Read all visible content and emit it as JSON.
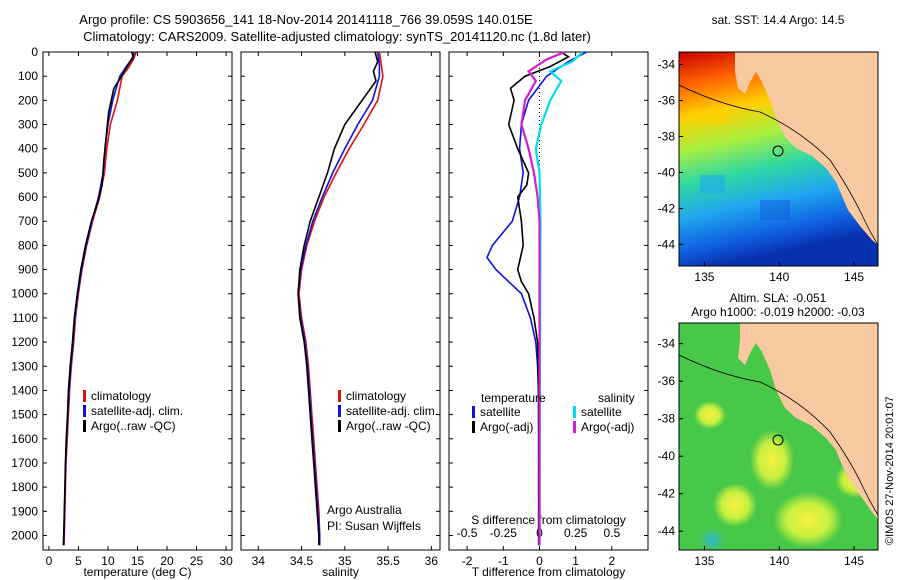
{
  "header": {
    "title_line1": "Argo profile: CS 5903656_141 18-Nov-2014 20141118_766 39.059S 140.015E",
    "title_line2": "Climatology: CARS2009. Satellite-adjusted climatology: synTS_20141120.nc (1.8d later)"
  },
  "colors": {
    "climatology": "#e01010",
    "satellite": "#1010e0",
    "argo": "#000000",
    "sal_satellite": "#00e0e8",
    "sal_argo": "#d020d0",
    "land": "#f8c8a0"
  },
  "chart_data": [
    {
      "name": "temperature-panel",
      "type": "line",
      "xlabel": "temperature (deg C)",
      "xlim": [
        -1,
        31
      ],
      "xticks": [
        0,
        5,
        10,
        15,
        20,
        25,
        30
      ],
      "ylim": [
        2060,
        0
      ],
      "yticks": [
        0,
        100,
        200,
        300,
        400,
        500,
        600,
        700,
        800,
        900,
        1000,
        1100,
        1200,
        1300,
        1400,
        1500,
        1600,
        1700,
        1800,
        1900,
        2000
      ],
      "legend": [
        "climatology",
        "satellite-adj. clim.",
        "Argo(..raw -QC)"
      ],
      "series": [
        {
          "key": "climatology",
          "points": [
            [
              14.8,
              0
            ],
            [
              14.3,
              30
            ],
            [
              13.6,
              60
            ],
            [
              12.4,
              100
            ],
            [
              11.6,
              200
            ],
            [
              10.4,
              300
            ],
            [
              9.8,
              400
            ],
            [
              9.4,
              500
            ],
            [
              8.6,
              600
            ],
            [
              7.4,
              700
            ],
            [
              6.4,
              800
            ],
            [
              5.6,
              900
            ],
            [
              5.0,
              1000
            ],
            [
              4.5,
              1100
            ],
            [
              4.2,
              1200
            ],
            [
              3.8,
              1300
            ],
            [
              3.5,
              1400
            ],
            [
              3.3,
              1500
            ],
            [
              3.1,
              1600
            ],
            [
              2.9,
              1700
            ],
            [
              2.8,
              1800
            ],
            [
              2.7,
              1900
            ],
            [
              2.6,
              2000
            ],
            [
              2.55,
              2040
            ]
          ]
        },
        {
          "key": "satellite",
          "points": [
            [
              14.5,
              0
            ],
            [
              14.0,
              30
            ],
            [
              13.1,
              60
            ],
            [
              12.0,
              100
            ],
            [
              10.8,
              200
            ],
            [
              10.0,
              300
            ],
            [
              9.5,
              400
            ],
            [
              9.2,
              500
            ],
            [
              8.4,
              600
            ],
            [
              7.3,
              700
            ],
            [
              6.3,
              800
            ],
            [
              5.5,
              900
            ],
            [
              4.9,
              1000
            ],
            [
              4.4,
              1100
            ],
            [
              4.1,
              1200
            ],
            [
              3.7,
              1300
            ],
            [
              3.4,
              1400
            ],
            [
              3.2,
              1500
            ],
            [
              3.0,
              1600
            ],
            [
              2.85,
              1700
            ],
            [
              2.75,
              1800
            ],
            [
              2.65,
              1900
            ],
            [
              2.55,
              2000
            ],
            [
              2.5,
              2040
            ]
          ]
        },
        {
          "key": "argo",
          "points": [
            [
              14.0,
              0
            ],
            [
              14.3,
              20
            ],
            [
              13.5,
              50
            ],
            [
              12.3,
              100
            ],
            [
              11.0,
              150
            ],
            [
              10.1,
              250
            ],
            [
              9.7,
              350
            ],
            [
              9.3,
              450
            ],
            [
              9.0,
              550
            ],
            [
              8.3,
              620
            ],
            [
              7.2,
              700
            ],
            [
              6.2,
              800
            ],
            [
              5.4,
              900
            ],
            [
              4.8,
              1000
            ],
            [
              4.3,
              1100
            ],
            [
              4.0,
              1200
            ],
            [
              3.6,
              1300
            ],
            [
              3.3,
              1400
            ],
            [
              3.15,
              1500
            ],
            [
              2.95,
              1600
            ],
            [
              2.8,
              1700
            ],
            [
              2.7,
              1800
            ],
            [
              2.6,
              1900
            ],
            [
              2.5,
              2000
            ],
            [
              2.45,
              2040
            ]
          ]
        }
      ]
    },
    {
      "name": "salinity-panel",
      "type": "line",
      "xlabel": "salinity",
      "xlim": [
        33.8,
        36.1
      ],
      "xticks": [
        34,
        34.5,
        35,
        35.5,
        36
      ],
      "ylim": [
        2060,
        0
      ],
      "legend": [
        "climatology",
        "satellite-adj. clim.",
        "Argo(..raw -QC)"
      ],
      "annotation": [
        "Argo Australia",
        "PI: Susan Wijffels"
      ],
      "series": [
        {
          "key": "climatology",
          "points": [
            [
              35.4,
              0
            ],
            [
              35.42,
              50
            ],
            [
              35.44,
              100
            ],
            [
              35.38,
              200
            ],
            [
              35.22,
              300
            ],
            [
              35.05,
              400
            ],
            [
              34.9,
              500
            ],
            [
              34.76,
              600
            ],
            [
              34.65,
              700
            ],
            [
              34.56,
              800
            ],
            [
              34.5,
              900
            ],
            [
              34.47,
              1000
            ],
            [
              34.5,
              1100
            ],
            [
              34.55,
              1200
            ],
            [
              34.58,
              1300
            ],
            [
              34.6,
              1400
            ],
            [
              34.62,
              1500
            ],
            [
              34.64,
              1600
            ],
            [
              34.66,
              1700
            ],
            [
              34.68,
              1800
            ],
            [
              34.7,
              1900
            ],
            [
              34.71,
              2000
            ],
            [
              34.71,
              2040
            ]
          ]
        },
        {
          "key": "satellite",
          "points": [
            [
              35.38,
              0
            ],
            [
              35.4,
              50
            ],
            [
              35.4,
              100
            ],
            [
              35.32,
              200
            ],
            [
              35.15,
              300
            ],
            [
              35.0,
              400
            ],
            [
              34.86,
              500
            ],
            [
              34.74,
              600
            ],
            [
              34.63,
              700
            ],
            [
              34.55,
              800
            ],
            [
              34.49,
              900
            ],
            [
              34.46,
              1000
            ],
            [
              34.49,
              1100
            ],
            [
              34.54,
              1200
            ],
            [
              34.57,
              1300
            ],
            [
              34.59,
              1400
            ],
            [
              34.61,
              1500
            ],
            [
              34.63,
              1600
            ],
            [
              34.65,
              1700
            ],
            [
              34.67,
              1800
            ],
            [
              34.69,
              1900
            ],
            [
              34.71,
              2000
            ],
            [
              34.71,
              2040
            ]
          ]
        },
        {
          "key": "argo",
          "points": [
            [
              35.35,
              0
            ],
            [
              35.38,
              40
            ],
            [
              35.33,
              80
            ],
            [
              35.36,
              120
            ],
            [
              35.2,
              200
            ],
            [
              35.0,
              300
            ],
            [
              34.88,
              400
            ],
            [
              34.8,
              500
            ],
            [
              34.7,
              600
            ],
            [
              34.6,
              700
            ],
            [
              34.53,
              800
            ],
            [
              34.48,
              900
            ],
            [
              34.46,
              1000
            ],
            [
              34.48,
              1100
            ],
            [
              34.53,
              1200
            ],
            [
              34.56,
              1300
            ],
            [
              34.58,
              1400
            ],
            [
              34.6,
              1500
            ],
            [
              34.62,
              1600
            ],
            [
              34.64,
              1700
            ],
            [
              34.66,
              1800
            ],
            [
              34.68,
              1900
            ],
            [
              34.7,
              2000
            ],
            [
              34.7,
              2040
            ]
          ]
        }
      ]
    },
    {
      "name": "difference-panel",
      "type": "line",
      "xlabel": "T difference from climatology",
      "xlabel_top": "S difference from climatology",
      "xlim": [
        -2.5,
        3.0
      ],
      "xticks": [
        -2,
        -1,
        0,
        1,
        2
      ],
      "sticks": [
        -0.5,
        -0.25,
        0,
        0.25,
        0.5
      ],
      "stick_labels": [
        "-0.5",
        "-0.25",
        "0",
        "0.25",
        "0.5"
      ],
      "ylim": [
        2060,
        0
      ],
      "legend_temperature_title": "temperature",
      "legend_temperature": [
        "satellite",
        "Argo(-adj)"
      ],
      "legend_salinity_title": "salinity",
      "legend_salinity": [
        "satellite",
        "Argo(-adj)"
      ],
      "series": [
        {
          "key": "satellite",
          "points": [
            [
              1.3,
              0
            ],
            [
              0.8,
              40
            ],
            [
              0.2,
              100
            ],
            [
              -0.3,
              200
            ],
            [
              -0.5,
              300
            ],
            [
              -0.55,
              400
            ],
            [
              -0.45,
              500
            ],
            [
              -0.55,
              600
            ],
            [
              -0.75,
              700
            ],
            [
              -1.3,
              800
            ],
            [
              -1.45,
              850
            ],
            [
              -1.2,
              900
            ],
            [
              -0.85,
              950
            ],
            [
              -0.5,
              1000
            ],
            [
              -0.25,
              1100
            ],
            [
              -0.1,
              1200
            ],
            [
              -0.05,
              1300
            ],
            [
              -0.03,
              1400
            ],
            [
              -0.02,
              1600
            ],
            [
              -0.02,
              2040
            ]
          ]
        },
        {
          "key": "argo",
          "points": [
            [
              0.6,
              0
            ],
            [
              0.8,
              20
            ],
            [
              0.3,
              60
            ],
            [
              -0.4,
              100
            ],
            [
              -0.8,
              150
            ],
            [
              -0.7,
              200
            ],
            [
              -0.85,
              300
            ],
            [
              -0.6,
              400
            ],
            [
              -0.3,
              500
            ],
            [
              -0.35,
              550
            ],
            [
              -0.6,
              600
            ],
            [
              -0.5,
              700
            ],
            [
              -0.45,
              800
            ],
            [
              -0.6,
              900
            ],
            [
              -0.5,
              950
            ],
            [
              -0.3,
              1000
            ],
            [
              -0.15,
              1100
            ],
            [
              -0.05,
              1200
            ],
            [
              -0.02,
              1400
            ],
            [
              -0.02,
              2040
            ]
          ]
        },
        {
          "key": "sal_satellite",
          "points": [
            [
              1.2,
              0
            ],
            [
              0.9,
              40
            ],
            [
              0.3,
              80
            ],
            [
              0.6,
              120
            ],
            [
              0.3,
              200
            ],
            [
              0.05,
              300
            ],
            [
              -0.1,
              400
            ],
            [
              0,
              500
            ],
            [
              0.03,
              700
            ],
            [
              0.02,
              1000
            ],
            [
              0.01,
              1500
            ],
            [
              0.0,
              2040
            ]
          ]
        },
        {
          "key": "sal_argo",
          "points": [
            [
              0.7,
              0
            ],
            [
              0.2,
              30
            ],
            [
              -0.3,
              80
            ],
            [
              -0.1,
              120
            ],
            [
              -0.4,
              200
            ],
            [
              -0.5,
              300
            ],
            [
              -0.3,
              400
            ],
            [
              -0.15,
              500
            ],
            [
              -0.05,
              600
            ],
            [
              0.0,
              700
            ],
            [
              0.0,
              2040
            ]
          ]
        }
      ]
    }
  ],
  "maps": {
    "top": {
      "title": "sat. SST: 14.4 Argo: 14.5",
      "xticks": [
        "135",
        "140",
        "145"
      ],
      "yticks": [
        "-34",
        "-36",
        "-38",
        "-40",
        "-42",
        "-44"
      ]
    },
    "bottom": {
      "title_line1": "Altim. SLA: -0.051",
      "title_line2": "Argo h1000: -0.019 h2000: -0.03",
      "xticks": [
        "135",
        "140",
        "145"
      ],
      "yticks": [
        "-34",
        "-36",
        "-38",
        "-40",
        "-42",
        "-44"
      ]
    },
    "credit": "©IMOS 27-Nov-2014 20:01:07"
  }
}
